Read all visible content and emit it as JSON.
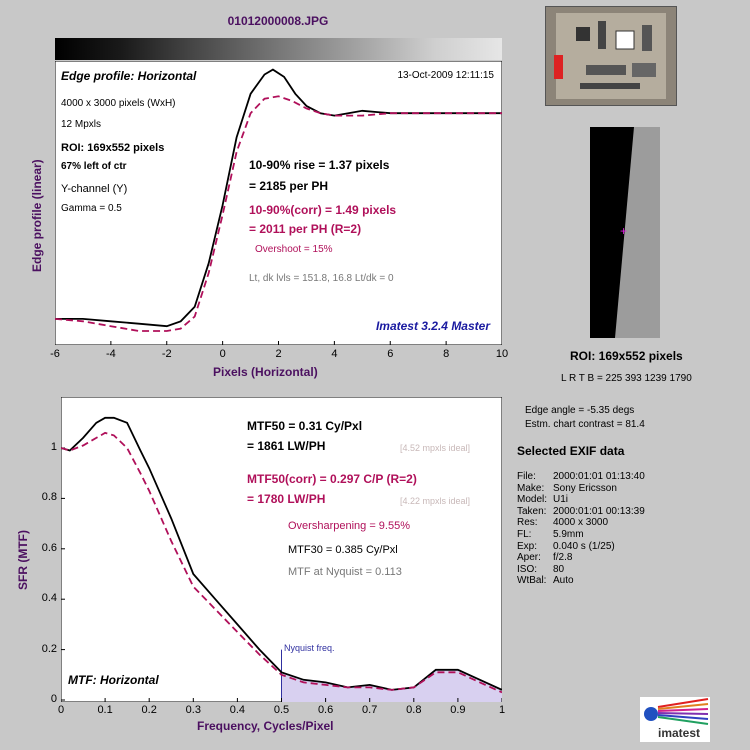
{
  "file_title": "01012000008.JPG",
  "edge": {
    "title": "Edge profile: Horizontal",
    "date": "13-Oct-2009 12:11:15",
    "pixels": "4000 x 3000 pixels (WxH)",
    "mpxls": "12 Mpxls",
    "roi": "ROI:  169x552 pixels",
    "left_ctr": "67% left of ctr",
    "channel": "Y-channel  (Y)",
    "gamma": "Gamma = 0.5",
    "rise": "10-90% rise = 1.37 pixels",
    "per_ph": "= 2185 per PH",
    "rise_corr": "10-90%(corr) = 1.49 pixels",
    "per_ph_corr": "= 2011 per PH  (R=2)",
    "overshoot": "Overshoot = 15%",
    "levels": "Lt, dk lvls = 151.8, 16.8   Lt/dk = 0",
    "version": "Imatest 3.2.4 Master",
    "ylabel": "Edge profile (linear)",
    "xlabel": "Pixels (Horizontal)",
    "xticks": [
      "-6",
      "-4",
      "-2",
      "0",
      "2",
      "4",
      "6",
      "8",
      "10"
    ]
  },
  "mtf": {
    "title": "MTF: Horizontal",
    "mtf50": "MTF50 = 0.31 Cy/Pxl",
    "lwph": "= 1861 LW/PH",
    "ideal1": "[4.52 mpxls ideal]",
    "mtf50_corr": "MTF50(corr) = 0.297 C/P  (R=2)",
    "lwph_corr": "= 1780 LW/PH",
    "ideal2": "[4.22 mpxls ideal]",
    "oversharp": "Oversharpening = 9.55%",
    "mtf30": "MTF30 = 0.385 Cy/Pxl",
    "nyq_mtf": "MTF at Nyquist = 0.113",
    "nyq_label": "Nyquist freq.",
    "ylabel": "SFR (MTF)",
    "xlabel": "Frequency, Cycles/Pixel",
    "xticks": [
      "0",
      "0.1",
      "0.2",
      "0.3",
      "0.4",
      "0.5",
      "0.6",
      "0.7",
      "0.8",
      "0.9",
      "1"
    ],
    "yticks": [
      "0",
      "0.2",
      "0.4",
      "0.6",
      "0.8",
      "1"
    ]
  },
  "right": {
    "roi_title": "ROI:  169x552 pixels",
    "lrtb": "L R  T B = 225 393  1239 1790",
    "edge_angle": "Edge angle = -5.35 degs",
    "contrast": "Estm. chart contrast = 81.4",
    "exif_title": "Selected EXIF data",
    "exif": [
      {
        "k": "File:",
        "v": "2000:01:01 01:13:40"
      },
      {
        "k": "Make:",
        "v": "Sony Ericsson"
      },
      {
        "k": "Model:",
        "v": "U1i"
      },
      {
        "k": "Taken:",
        "v": "2000:01:01 00:13:39"
      },
      {
        "k": "Res:",
        "v": "4000 x 3000"
      },
      {
        "k": "FL:",
        "v": "5.9mm"
      },
      {
        "k": "Exp:",
        "v": "0.040 s  (1/25)"
      },
      {
        "k": "Aper:",
        "v": "f/2.8"
      },
      {
        "k": "ISO:",
        "v": "80"
      },
      {
        "k": "WtBal:",
        "v": "Auto"
      }
    ],
    "logo": "imatest"
  },
  "colors": {
    "title": "#4b1060",
    "corr": "#b0105a",
    "measured": "#000000",
    "nyquist": "#3030a0",
    "nyq_fill": "#d8d0f0"
  },
  "chart_data": [
    {
      "type": "line",
      "title": "Edge profile: Horizontal",
      "xlabel": "Pixels (Horizontal)",
      "ylabel": "Edge profile (linear)",
      "xlim": [
        -6,
        10
      ],
      "series": [
        {
          "x": [
            -6,
            -5,
            -4,
            -3,
            -2,
            -1.5,
            -1,
            -0.5,
            0,
            0.5,
            1,
            1.5,
            1.8,
            2.2,
            2.6,
            3,
            3.5,
            4,
            4.5,
            5,
            6,
            7,
            8,
            9,
            10
          ],
          "values": [
            0.05,
            0.05,
            0.04,
            0.03,
            0.02,
            0.04,
            0.1,
            0.28,
            0.52,
            0.8,
            0.98,
            1.06,
            1.08,
            1.05,
            0.98,
            0.93,
            0.9,
            0.89,
            0.9,
            0.91,
            0.9,
            0.9,
            0.9,
            0.9,
            0.9
          ]
        },
        {
          "x": [
            -6,
            -5,
            -4,
            -3,
            -2,
            -1.5,
            -1,
            -0.5,
            0,
            0.5,
            1,
            1.5,
            2,
            2.5,
            3,
            3.5,
            4,
            5,
            6,
            7,
            8,
            9,
            10
          ],
          "values": [
            0.05,
            0.04,
            0.02,
            0.0,
            0.0,
            0.01,
            0.06,
            0.24,
            0.48,
            0.74,
            0.9,
            0.96,
            0.97,
            0.95,
            0.92,
            0.9,
            0.89,
            0.89,
            0.9,
            0.9,
            0.9,
            0.9,
            0.9
          ]
        }
      ]
    },
    {
      "type": "line",
      "title": "MTF: Horizontal",
      "xlabel": "Frequency, Cycles/Pixel",
      "ylabel": "SFR (MTF)",
      "xlim": [
        0,
        1
      ],
      "ylim": [
        0,
        1.15
      ],
      "series": [
        {
          "x": [
            0,
            0.02,
            0.05,
            0.08,
            0.1,
            0.12,
            0.15,
            0.18,
            0.2,
            0.25,
            0.3,
            0.35,
            0.4,
            0.45,
            0.5,
            0.55,
            0.6,
            0.65,
            0.7,
            0.75,
            0.8,
            0.85,
            0.9,
            0.95,
            1.0
          ],
          "values": [
            1.0,
            0.99,
            1.04,
            1.1,
            1.12,
            1.12,
            1.1,
            0.99,
            0.92,
            0.72,
            0.5,
            0.4,
            0.3,
            0.2,
            0.11,
            0.08,
            0.07,
            0.05,
            0.06,
            0.04,
            0.05,
            0.12,
            0.12,
            0.08,
            0.04
          ]
        },
        {
          "x": [
            0,
            0.02,
            0.05,
            0.08,
            0.1,
            0.12,
            0.15,
            0.18,
            0.2,
            0.25,
            0.3,
            0.35,
            0.4,
            0.45,
            0.5,
            0.55,
            0.6,
            0.65,
            0.7,
            0.75,
            0.8,
            0.85,
            0.9,
            0.95,
            1.0
          ],
          "values": [
            1.0,
            0.99,
            1.01,
            1.04,
            1.06,
            1.05,
            1.0,
            0.9,
            0.83,
            0.63,
            0.45,
            0.36,
            0.27,
            0.18,
            0.1,
            0.07,
            0.06,
            0.05,
            0.05,
            0.04,
            0.05,
            0.11,
            0.11,
            0.07,
            0.03
          ]
        }
      ]
    }
  ]
}
